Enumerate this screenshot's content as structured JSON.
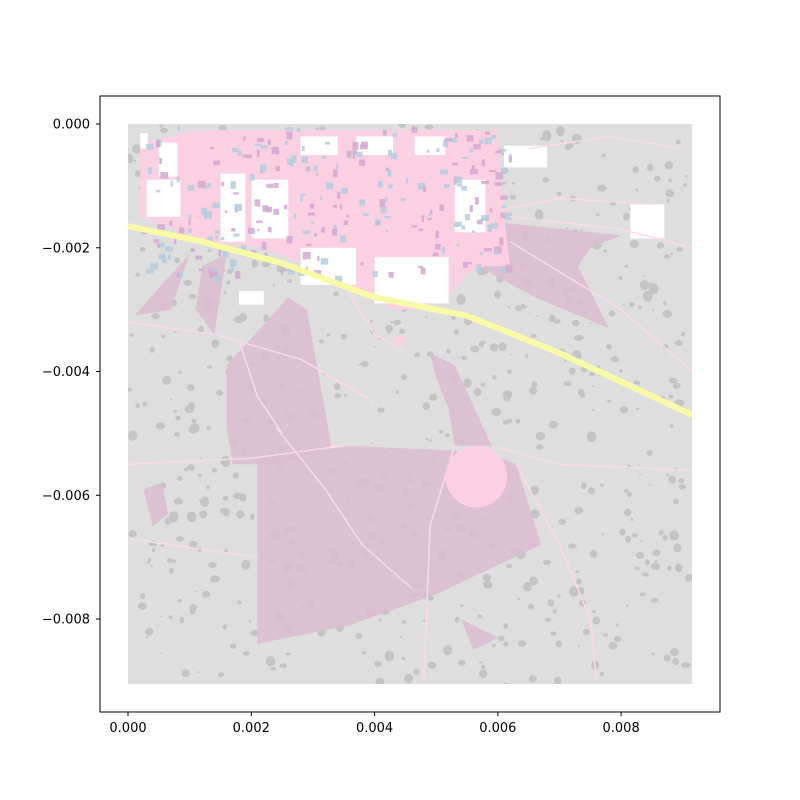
{
  "chart_data": {
    "type": "map",
    "title": "",
    "xlabel": "",
    "ylabel": "",
    "xlim": [
      -0.00045,
      0.0096
    ],
    "ylim": [
      -0.00945,
      0.00045
    ],
    "x_ticks": [
      {
        "value": 0.0,
        "label": "0.000"
      },
      {
        "value": 0.002,
        "label": "0.002"
      },
      {
        "value": 0.004,
        "label": "0.004"
      },
      {
        "value": 0.006,
        "label": "0.006"
      },
      {
        "value": 0.008,
        "label": "0.008"
      }
    ],
    "y_ticks": [
      {
        "value": 0.0,
        "label": "0.000"
      },
      {
        "value": -0.002,
        "label": "−0.002"
      },
      {
        "value": -0.004,
        "label": "−0.004"
      },
      {
        "value": -0.006,
        "label": "−0.006"
      },
      {
        "value": -0.008,
        "label": "−0.008"
      }
    ],
    "grid": false,
    "map_extent": {
      "x": [
        0.0,
        0.00915
      ],
      "y": [
        -0.00905,
        0.0
      ]
    },
    "colors": {
      "land": "#dedede",
      "dots": "#c4c4c4",
      "urban": "#fbd0e3",
      "zones": "#dcbcd0",
      "roads": "#fbd9ea",
      "highway": "#fafaa6",
      "buildings": "#b4cce0",
      "blocks": "#ffffff"
    },
    "layers": {
      "zones": [
        {
          "name": "zone-ne",
          "points": [
            [
              0.0061,
              -0.0016
            ],
            [
              0.008,
              -0.0018
            ],
            [
              0.0075,
              -0.002
            ],
            [
              0.0073,
              -0.0023
            ],
            [
              0.0078,
              -0.0033
            ],
            [
              0.0066,
              -0.0028
            ],
            [
              0.0055,
              -0.0022
            ]
          ]
        },
        {
          "name": "zone-w1",
          "points": [
            [
              0.0001,
              -0.0031
            ],
            [
              0.001,
              -0.0021
            ],
            [
              0.0007,
              -0.003
            ]
          ]
        },
        {
          "name": "zone-w2",
          "points": [
            [
              0.0012,
              -0.0023
            ],
            [
              0.0016,
              -0.0021
            ],
            [
              0.0014,
              -0.0034
            ],
            [
              0.0011,
              -0.003
            ]
          ]
        },
        {
          "name": "zone-center-north",
          "points": [
            [
              0.0026,
              -0.0028
            ],
            [
              0.0029,
              -0.003
            ],
            [
              0.0033,
              -0.0052
            ],
            [
              0.0025,
              -0.0055
            ],
            [
              0.0017,
              -0.0055
            ],
            [
              0.0016,
              -0.0049
            ],
            [
              0.0016,
              -0.0039
            ]
          ]
        },
        {
          "name": "zone-creek",
          "points": [
            [
              0.0049,
              -0.0037
            ],
            [
              0.0053,
              -0.0039
            ],
            [
              0.0059,
              -0.0052
            ],
            [
              0.0053,
              -0.0052
            ],
            [
              0.0052,
              -0.0046
            ],
            [
              0.005,
              -0.0041
            ]
          ]
        },
        {
          "name": "zone-main",
          "points": [
            [
              0.0021,
              -0.0054
            ],
            [
              0.0036,
              -0.0052
            ],
            [
              0.0058,
              -0.0053
            ],
            [
              0.0063,
              -0.0055
            ],
            [
              0.0067,
              -0.0068
            ],
            [
              0.005,
              -0.0076
            ],
            [
              0.0036,
              -0.0081
            ],
            [
              0.0021,
              -0.0084
            ]
          ]
        },
        {
          "name": "zone-south-spike",
          "points": [
            [
              0.0054,
              -0.008
            ],
            [
              0.0058,
              -0.0082
            ],
            [
              0.006,
              -0.0083
            ],
            [
              0.0056,
              -0.0085
            ]
          ]
        },
        {
          "name": "zone-sw-small",
          "points": [
            [
              0.00025,
              -0.0059
            ],
            [
              0.00055,
              -0.0058
            ],
            [
              0.00065,
              -0.0063
            ],
            [
              0.0004,
              -0.0065
            ]
          ]
        }
      ],
      "urban_area": {
        "points": [
          [
            0.0011,
            -0.0001
          ],
          [
            0.006,
            -0.0001
          ],
          [
            0.0061,
            -0.0015
          ],
          [
            0.0062,
            -0.0023
          ],
          [
            0.0058,
            -0.0023
          ],
          [
            0.0055,
            -0.0024
          ],
          [
            0.0052,
            -0.0028
          ],
          [
            0.0047,
            -0.003
          ],
          [
            0.0043,
            -0.003
          ],
          [
            0.004,
            -0.0028
          ],
          [
            0.0037,
            -0.0027
          ],
          [
            0.0034,
            -0.0025
          ],
          [
            0.0029,
            -0.0023
          ],
          [
            0.0022,
            -0.002
          ],
          [
            0.0013,
            -0.0019
          ],
          [
            0.0002,
            -0.0015
          ],
          [
            0.0002,
            -0.0003
          ]
        ]
      },
      "highway": {
        "points": [
          [
            0.0,
            -0.00165
          ],
          [
            0.0012,
            -0.0019
          ],
          [
            0.0025,
            -0.00225
          ],
          [
            0.004,
            -0.0028
          ],
          [
            0.0055,
            -0.0031
          ],
          [
            0.007,
            -0.0037
          ],
          [
            0.00915,
            -0.0047
          ]
        ]
      },
      "roads": [
        {
          "points": [
            [
              0.0,
              -0.0032
            ],
            [
              0.0014,
              -0.0034
            ],
            [
              0.0028,
              -0.0038
            ],
            [
              0.004,
              -0.0045
            ]
          ]
        },
        {
          "points": [
            [
              0.0,
              -0.0055
            ],
            [
              0.002,
              -0.0054
            ],
            [
              0.0035,
              -0.0052
            ]
          ]
        },
        {
          "points": [
            [
              0.0,
              -0.0067
            ],
            [
              0.0021,
              -0.007
            ]
          ]
        },
        {
          "points": [
            [
              0.0024,
              -0.0049
            ],
            [
              0.0032,
              -0.0059
            ],
            [
              0.0038,
              -0.0068
            ],
            [
              0.0046,
              -0.0075
            ]
          ]
        },
        {
          "points": [
            [
              0.0053,
              -0.0052
            ],
            [
              0.0049,
              -0.0065
            ],
            [
              0.0048,
              -0.009
            ]
          ]
        },
        {
          "points": [
            [
              0.0063,
              -0.0055
            ],
            [
              0.007,
              -0.0068
            ],
            [
              0.0075,
              -0.008
            ],
            [
              0.0076,
              -0.009
            ]
          ]
        },
        {
          "points": [
            [
              0.0059,
              -0.0052
            ],
            [
              0.007,
              -0.0055
            ],
            [
              0.00915,
              -0.0056
            ]
          ]
        },
        {
          "points": [
            [
              0.0035,
              -0.0026
            ],
            [
              0.004,
              -0.0034
            ],
            [
              0.0045,
              -0.0037
            ]
          ]
        },
        {
          "points": [
            [
              0.0062,
              -0.0019
            ],
            [
              0.008,
              -0.003
            ],
            [
              0.00915,
              -0.004
            ]
          ]
        },
        {
          "points": [
            [
              0.0062,
              -0.0015
            ],
            [
              0.008,
              -0.0017
            ],
            [
              0.00915,
              -0.002
            ]
          ]
        },
        {
          "points": [
            [
              0.0018,
              -0.0035
            ],
            [
              0.0021,
              -0.0044
            ],
            [
              0.0025,
              -0.005
            ]
          ]
        },
        {
          "points": [
            [
              0.006,
              -0.0014
            ],
            [
              0.007,
              -0.0012
            ],
            [
              0.0085,
              -0.0013
            ]
          ]
        },
        {
          "points": [
            [
              0.0065,
              -0.0004
            ],
            [
              0.0078,
              -0.0002
            ],
            [
              0.009,
              -0.0004
            ]
          ]
        }
      ],
      "pink_blobs": [
        {
          "cx": 0.00565,
          "cy": -0.0057,
          "rx": 0.0005,
          "ry": 0.0005
        },
        {
          "cx": 0.0044,
          "cy": -0.0035,
          "rx": 0.0001,
          "ry": 8e-05
        }
      ],
      "white_blocks": [
        {
          "x": 0.0002,
          "y": -0.00015,
          "w": 0.00012,
          "h": 0.00025
        },
        {
          "x": 0.0005,
          "y": -0.0003,
          "w": 0.0003,
          "h": 0.00055
        },
        {
          "x": 0.0003,
          "y": -0.0009,
          "w": 0.00055,
          "h": 0.0006
        },
        {
          "x": 0.0015,
          "y": -0.0008,
          "w": 0.0004,
          "h": 0.0011
        },
        {
          "x": 0.002,
          "y": -0.0009,
          "w": 0.0006,
          "h": 0.00095
        },
        {
          "x": 0.0028,
          "y": -0.002,
          "w": 0.0009,
          "h": 0.0006
        },
        {
          "x": 0.0018,
          "y": -0.0027,
          "w": 0.0004,
          "h": 0.00022
        },
        {
          "x": 0.0053,
          "y": -0.0009,
          "w": 0.0005,
          "h": 0.00085
        },
        {
          "x": 0.00465,
          "y": -0.0002,
          "w": 0.0005,
          "h": 0.0003
        },
        {
          "x": 0.0037,
          "y": -0.0002,
          "w": 0.0006,
          "h": 0.0003
        },
        {
          "x": 0.0028,
          "y": -0.0002,
          "w": 0.0006,
          "h": 0.0003
        },
        {
          "x": 0.0061,
          "y": -0.00035,
          "w": 0.0007,
          "h": 0.00035
        },
        {
          "x": 0.004,
          "y": -0.00215,
          "w": 0.0012,
          "h": 0.00075
        },
        {
          "x": 0.00815,
          "y": -0.0013,
          "w": 0.00055,
          "h": 0.00055
        }
      ]
    }
  }
}
